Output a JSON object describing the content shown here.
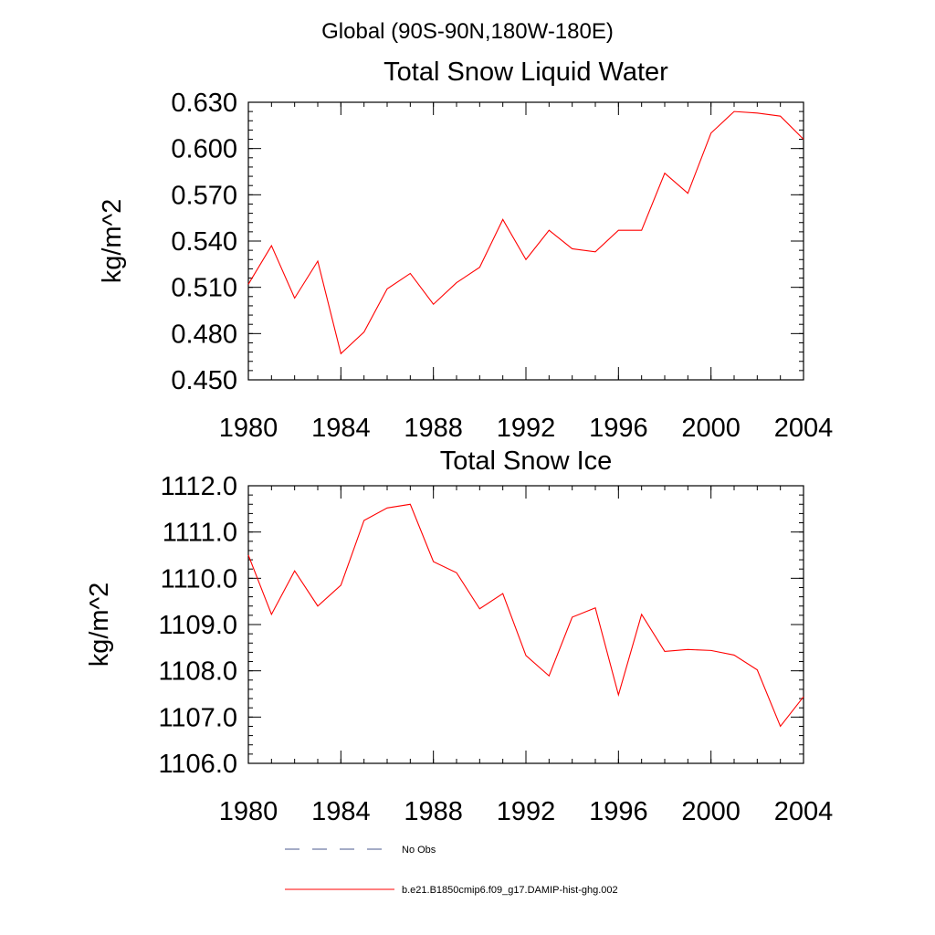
{
  "header": "Global (90S-90N,180W-180E)",
  "chart_data": [
    {
      "type": "line",
      "title": "Total Snow Liquid Water",
      "xlabel": "",
      "ylabel": "kg/m^2",
      "xlim": [
        1980,
        2004
      ],
      "ylim": [
        0.45,
        0.63
      ],
      "x_ticks": [
        1980,
        1984,
        1988,
        1992,
        1996,
        2000,
        2004
      ],
      "x_tick_labels": [
        "1980",
        "1984",
        "1988",
        "1992",
        "1996",
        "2000",
        "2004"
      ],
      "y_ticks": [
        0.45,
        0.48,
        0.51,
        0.54,
        0.57,
        0.6,
        0.63
      ],
      "y_tick_labels": [
        "0.450",
        "0.480",
        "0.510",
        "0.540",
        "0.570",
        "0.600",
        "0.630"
      ],
      "grid": false,
      "series": [
        {
          "color": "#ff0000",
          "x": [
            1980,
            1981,
            1982,
            1983,
            1984,
            1985,
            1986,
            1987,
            1988,
            1989,
            1990,
            1991,
            1992,
            1993,
            1994,
            1995,
            1996,
            1997,
            1998,
            1999,
            2000,
            2001,
            2002,
            2003,
            2004
          ],
          "values": [
            0.512,
            0.537,
            0.503,
            0.527,
            0.467,
            0.481,
            0.509,
            0.519,
            0.499,
            0.513,
            0.523,
            0.554,
            0.528,
            0.547,
            0.535,
            0.533,
            0.547,
            0.547,
            0.584,
            0.571,
            0.61,
            0.624,
            0.623,
            0.621,
            0.606
          ]
        }
      ]
    },
    {
      "type": "line",
      "title": "Total Snow Ice",
      "xlabel": "",
      "ylabel": "kg/m^2",
      "xlim": [
        1980,
        2004
      ],
      "ylim": [
        1106.0,
        1112.0
      ],
      "x_ticks": [
        1980,
        1984,
        1988,
        1992,
        1996,
        2000,
        2004
      ],
      "x_tick_labels": [
        "1980",
        "1984",
        "1988",
        "1992",
        "1996",
        "2000",
        "2004"
      ],
      "y_ticks": [
        1106.0,
        1107.0,
        1108.0,
        1109.0,
        1110.0,
        1111.0,
        1112.0
      ],
      "y_tick_labels": [
        "1106.0",
        "1107.0",
        "1108.0",
        "1109.0",
        "1110.0",
        "1111.0",
        "1112.0"
      ],
      "grid": false,
      "series": [
        {
          "color": "#ff0000",
          "x": [
            1980,
            1981,
            1982,
            1983,
            1984,
            1985,
            1986,
            1987,
            1988,
            1989,
            1990,
            1991,
            1992,
            1993,
            1994,
            1995,
            1996,
            1997,
            1998,
            1999,
            2000,
            2001,
            2002,
            2003,
            2004
          ],
          "values": [
            1110.5,
            1109.22,
            1110.16,
            1109.4,
            1109.85,
            1111.25,
            1111.52,
            1111.6,
            1110.36,
            1110.12,
            1109.34,
            1109.67,
            1108.33,
            1107.89,
            1109.16,
            1109.36,
            1107.48,
            1109.22,
            1108.42,
            1108.46,
            1108.44,
            1108.34,
            1108.02,
            1106.8,
            1107.44
          ]
        }
      ]
    }
  ],
  "legend": {
    "position": "bottom",
    "entries": [
      {
        "label": "No Obs",
        "color": "#4a5a8c",
        "style": "dashed"
      },
      {
        "label": "b.e21.B1850cmip6.f09_g17.DAMIP-hist-ghg.002",
        "color": "#ff0000",
        "style": "solid"
      }
    ]
  }
}
